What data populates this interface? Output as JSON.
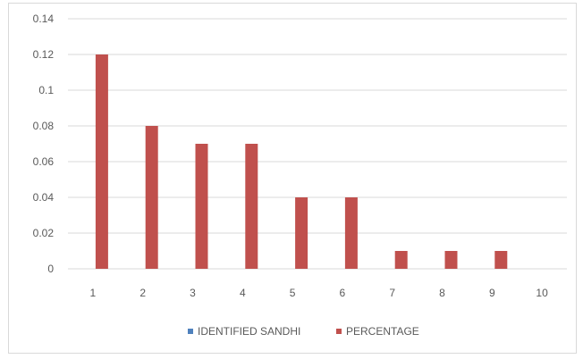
{
  "chart_data": {
    "type": "bar",
    "categories": [
      "1",
      "2",
      "3",
      "4",
      "5",
      "6",
      "7",
      "8",
      "9",
      "10"
    ],
    "series": [
      {
        "name": "IDENTIFIED SANDHI",
        "color": "#4f81bd",
        "values": [
          null,
          null,
          null,
          null,
          null,
          null,
          null,
          null,
          null,
          null
        ]
      },
      {
        "name": "PERCENTAGE",
        "color": "#c0504d",
        "values": [
          0.12,
          0.08,
          0.07,
          0.07,
          0.04,
          0.04,
          0.01,
          0.01,
          0.01,
          0
        ]
      }
    ],
    "ylim": [
      0,
      0.14
    ],
    "yticks": [
      "0",
      "0.02",
      "0.04",
      "0.06",
      "0.08",
      "0.1",
      "0.12",
      "0.14"
    ],
    "grid": true,
    "legend_position": "bottom",
    "gridline_color": "#d9d9d9"
  }
}
